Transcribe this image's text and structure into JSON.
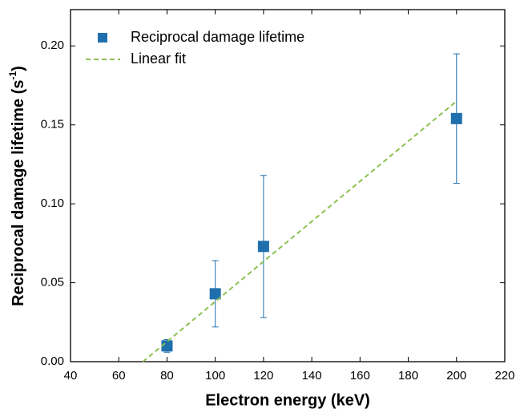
{
  "chart_data": {
    "type": "scatter",
    "x_label": "Electron energy (keV)",
    "y_label": "Reciprocal damage lifetime (s",
    "y_label_sup": "-1",
    "y_label_end": ")",
    "xlim": [
      40,
      220
    ],
    "xticks": [
      40,
      60,
      80,
      100,
      120,
      140,
      160,
      180,
      200,
      220
    ],
    "ylim": [
      0,
      0.223
    ],
    "yticks": [
      {
        "value": 0,
        "label": "0.00"
      },
      {
        "value": 0.05,
        "label": "0.05"
      },
      {
        "value": 0.1,
        "label": "0.10"
      },
      {
        "value": 0.15,
        "label": "0.15"
      },
      {
        "value": 0.2,
        "label": "0.20"
      }
    ],
    "legend": "top-left",
    "series": [
      {
        "name": "Reciprocal damage lifetime",
        "color": "#1f6fad",
        "style": "markers",
        "x": [
          80,
          100,
          120,
          200
        ],
        "values": [
          0.01,
          0.043,
          0.073,
          0.154
        ],
        "errors": [
          0.004,
          0.021,
          0.045,
          0.041
        ]
      },
      {
        "name": "Linear fit",
        "color": "#8cc152",
        "style": "dashed",
        "x": [
          70,
          200
        ],
        "values": [
          0,
          0.165
        ]
      }
    ]
  }
}
